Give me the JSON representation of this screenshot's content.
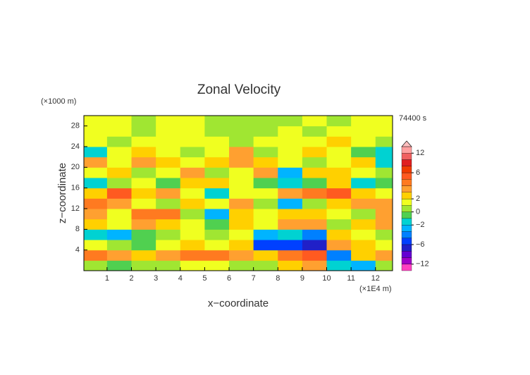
{
  "chart_data": {
    "type": "contour",
    "title": "Zonal Velocity",
    "y_unit": "(×1000 m)",
    "time_label": "74400 s",
    "ylabel": "z−coordinate",
    "xlabel": "x−coordinate",
    "x_unit": "(×1E4 m)",
    "xlim": [
      0.05,
      12.7
    ],
    "ylim": [
      0,
      30
    ],
    "xticks": [
      1,
      2,
      3,
      4,
      5,
      6,
      7,
      8,
      9,
      10,
      11,
      12
    ],
    "yticks": [
      4,
      8,
      12,
      16,
      20,
      24,
      28
    ],
    "x": [
      0.5,
      1.5,
      2.5,
      3.5,
      4.5,
      5.5,
      6.5,
      7.5,
      8.5,
      9.5,
      10.5,
      11.5,
      12.5
    ],
    "y": [
      1,
      3,
      5,
      7,
      9,
      11,
      13,
      15,
      17,
      19,
      21,
      23,
      25,
      27,
      29
    ],
    "values": [
      [
        0,
        -1,
        0,
        0,
        1,
        1,
        0,
        0,
        2,
        3,
        -2,
        -3,
        0
      ],
      [
        4,
        3,
        2,
        3,
        4,
        4,
        3,
        2,
        4,
        5,
        -4,
        2,
        3
      ],
      [
        1,
        0,
        -1,
        1,
        2,
        1,
        2,
        -5,
        -6,
        -7,
        3,
        2,
        1
      ],
      [
        -2,
        -3,
        -1,
        0,
        1,
        0,
        1,
        -3,
        -2,
        -4,
        2,
        1,
        0
      ],
      [
        2,
        1,
        3,
        2,
        1,
        -1,
        2,
        1,
        3,
        3,
        0,
        2,
        3
      ],
      [
        3,
        1,
        4,
        4,
        0,
        -3,
        2,
        1,
        2,
        2,
        1,
        0,
        3
      ],
      [
        4,
        3,
        1,
        0,
        2,
        1,
        3,
        0,
        -3,
        0,
        2,
        3,
        3
      ],
      [
        2,
        5,
        2,
        3,
        1,
        -2,
        1,
        1,
        3,
        4,
        5,
        2,
        1
      ],
      [
        -2,
        0,
        1,
        -1,
        2,
        2,
        1,
        -1,
        -2,
        -1,
        2,
        -2,
        -1
      ],
      [
        1,
        2,
        0,
        1,
        3,
        0,
        1,
        3,
        -3,
        2,
        2,
        1,
        0
      ],
      [
        3,
        1,
        3,
        2,
        1,
        2,
        3,
        2,
        1,
        0,
        1,
        2,
        -2
      ],
      [
        -2,
        1,
        2,
        1,
        0,
        1,
        3,
        0,
        1,
        2,
        1,
        -1,
        -2
      ],
      [
        1,
        0,
        1,
        1,
        1,
        1,
        0,
        1,
        1,
        1,
        2,
        1,
        0
      ],
      [
        1,
        1,
        0,
        1,
        1,
        0,
        0,
        0,
        1,
        0,
        1,
        1,
        1
      ],
      [
        1,
        1,
        0,
        1,
        1,
        0,
        0,
        0,
        0,
        1,
        0,
        1,
        1
      ]
    ],
    "levels": [
      -14,
      -12,
      -10,
      -8,
      -6,
      -4,
      -3,
      -2,
      -1,
      0,
      1,
      2,
      3,
      4,
      5,
      6,
      8,
      10,
      12,
      14
    ],
    "colors": [
      "#ff40c0",
      "#a000c8",
      "#6400d2",
      "#2020c8",
      "#0040ff",
      "#0080ff",
      "#00b4ff",
      "#00d2d2",
      "#50d050",
      "#a0e632",
      "#f0ff20",
      "#ffd000",
      "#ffa030",
      "#ff7a20",
      "#ff5a20",
      "#f03c00",
      "#e02020",
      "#f06060",
      "#ffa0a0"
    ],
    "over_color": "#ffc0c0",
    "colorbar_ticks": [
      12,
      6,
      2,
      0,
      {
        "value": -2,
        "label": "−2"
      },
      {
        "value": -6,
        "label": "−6"
      },
      {
        "value": -12,
        "label": "−12"
      }
    ]
  }
}
